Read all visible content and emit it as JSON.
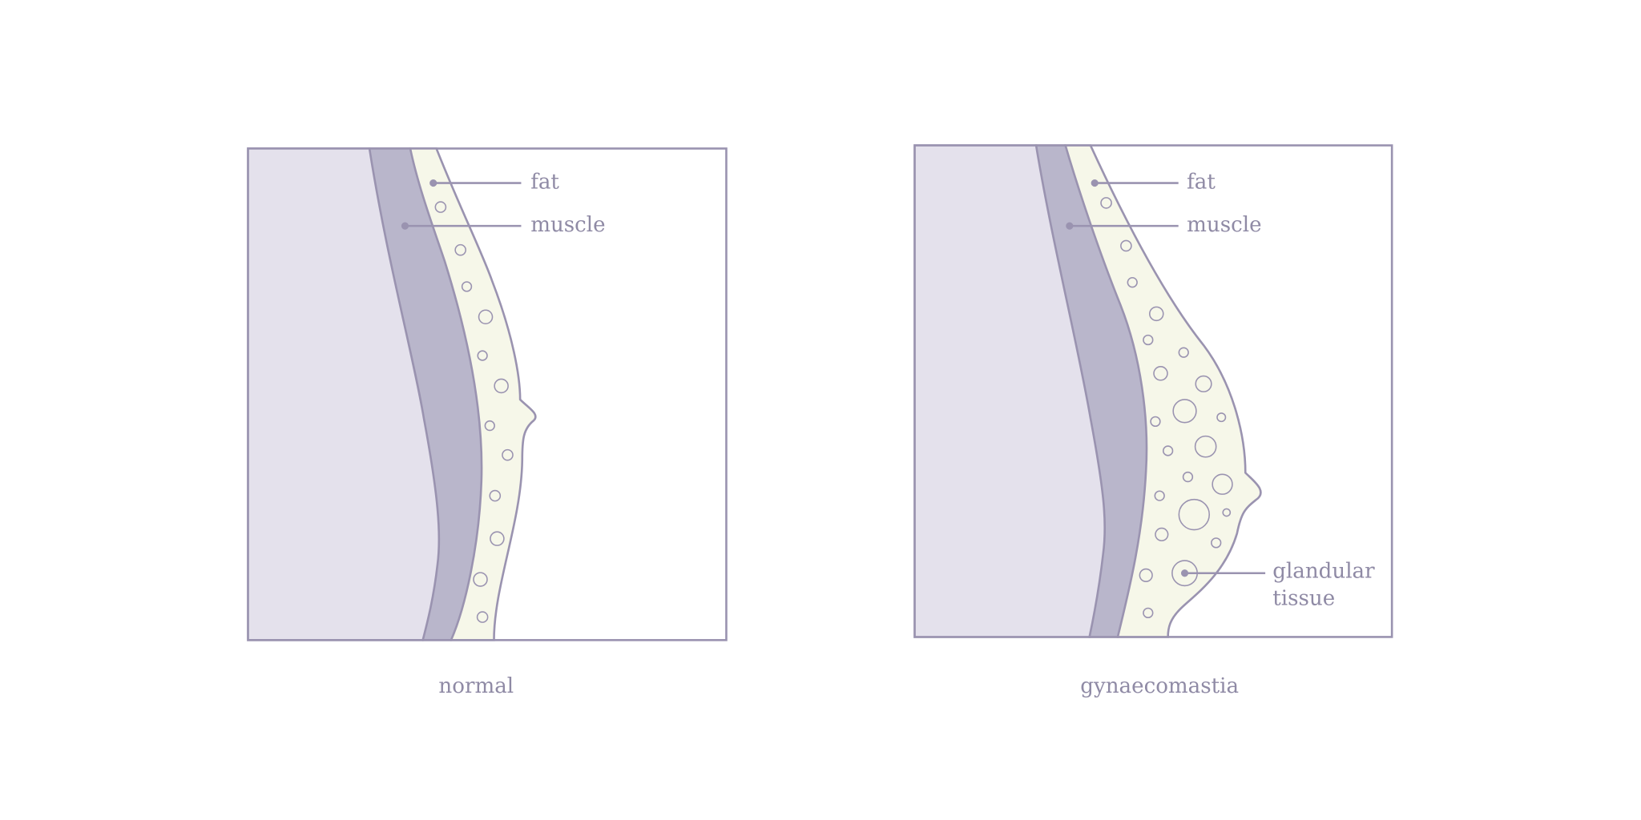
{
  "panels": [
    {
      "caption": "normal",
      "labels": [
        "fat",
        "muscle"
      ]
    },
    {
      "caption": "gynaecomastia",
      "labels": [
        "fat",
        "muscle"
      ],
      "gland_label": [
        "glandular",
        "tissue"
      ]
    }
  ]
}
